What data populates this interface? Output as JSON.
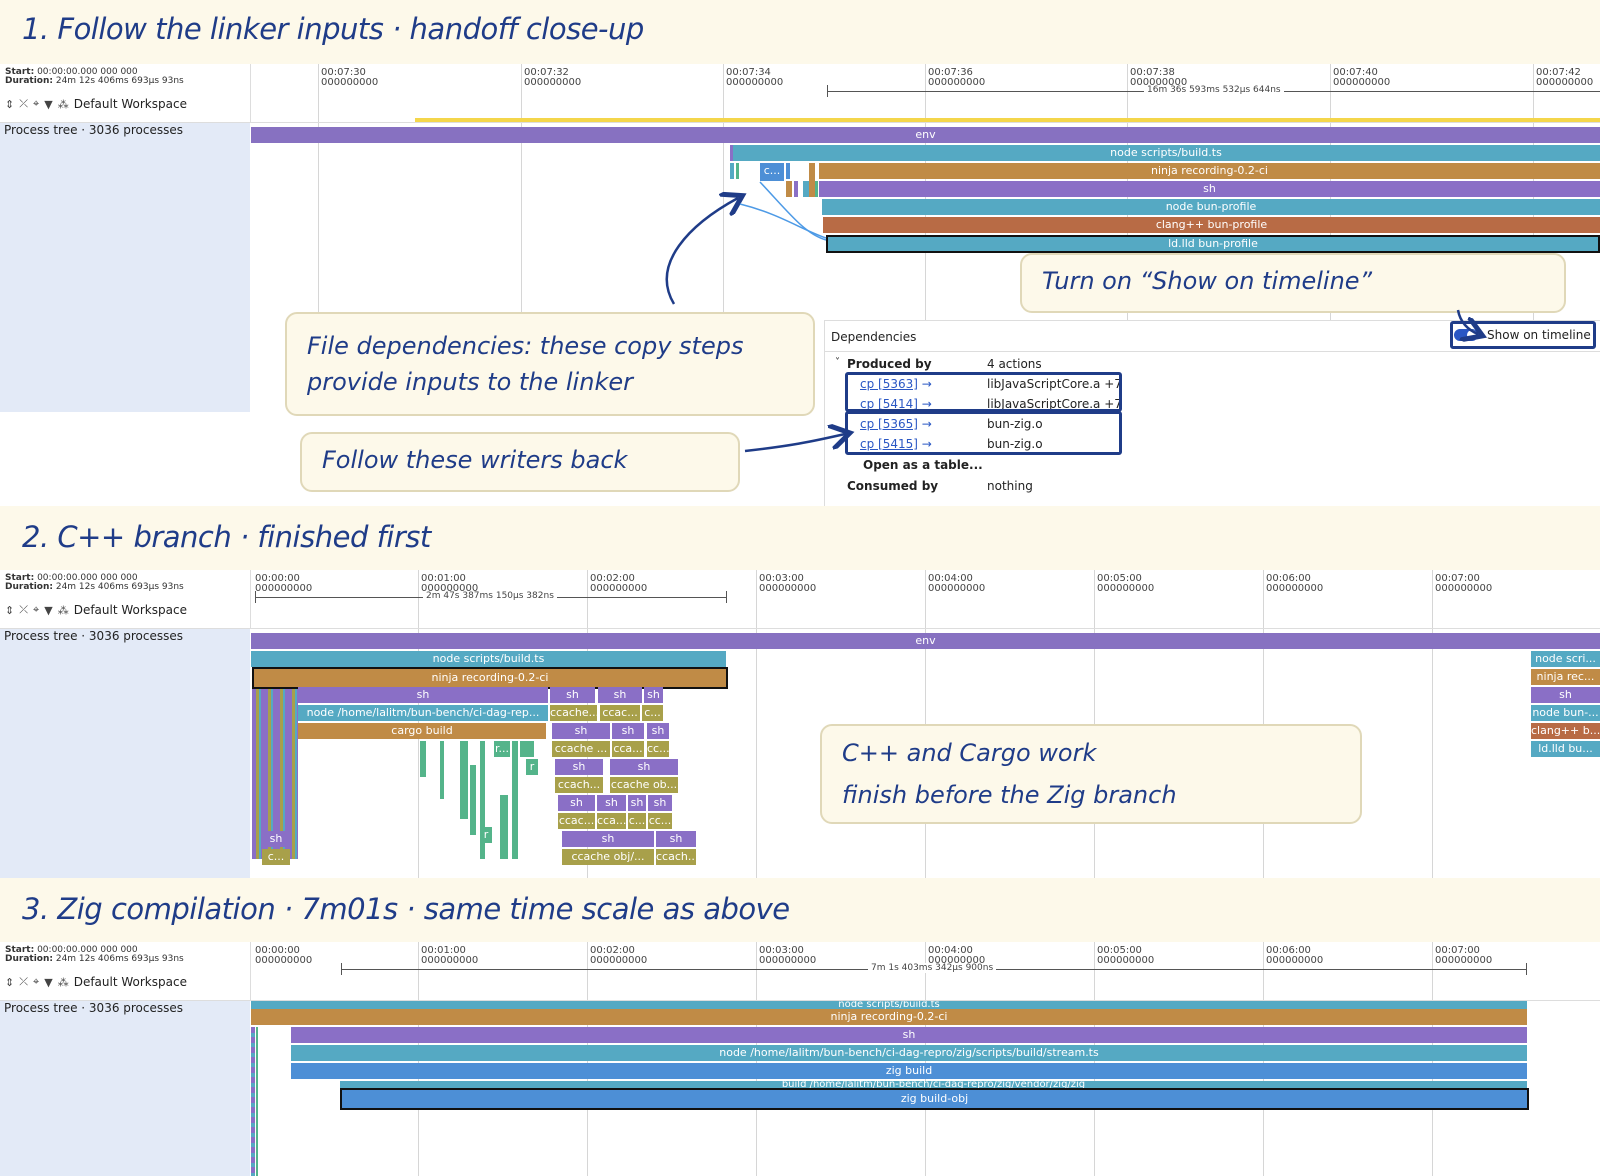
{
  "sections": [
    {
      "title": "1. Follow the linker inputs · handoff close-up"
    },
    {
      "title": "2. C++ branch · finished first"
    },
    {
      "title": "3. Zig compilation · 7m01s · same time scale as above"
    }
  ],
  "header": {
    "start_label": "Start:",
    "start_value": "00:00:00.000 000 000",
    "duration_label": "Duration:",
    "duration_value": "24m 12s 406ms 693μs 93ns",
    "workspace": "Default Workspace",
    "process_tree": "Process tree · 3036 processes"
  },
  "panel1": {
    "ticks": [
      "00:07:30",
      "00:07:32",
      "00:07:34",
      "00:07:36",
      "00:07:38",
      "00:07:40",
      "00:07:42"
    ],
    "tick_sub": "000000000",
    "range_label": "16m 36s 593ms 532μs 644ns",
    "bars": {
      "env": "env",
      "node": "node scripts/build.ts",
      "ninja": "ninja recording-0.2-ci",
      "sh": "sh",
      "nodebun": "node bun-profile",
      "clang": "clang++ bun-profile",
      "ld": "ld.lld bun-profile",
      "small": "c..."
    },
    "dependencies": {
      "title": "Dependencies",
      "toggle_label": "Show on timeline",
      "produced_by": "Produced by",
      "produced_count": "4 actions",
      "rows": [
        {
          "action": "cp [5363]",
          "file": "libJavaScriptCore.a +7"
        },
        {
          "action": "cp [5414]",
          "file": "libJavaScriptCore.a +7"
        },
        {
          "action": "cp [5365]",
          "file": "bun-zig.o"
        },
        {
          "action": "cp [5415]",
          "file": "bun-zig.o"
        }
      ],
      "arrow": "→",
      "open_table": "Open as a table...",
      "consumed_by": "Consumed by",
      "consumed_value": "nothing"
    },
    "callouts": {
      "toggle": "Turn on “Show on timeline”",
      "files_line1": "File dependencies: these copy steps",
      "files_line2": "provide inputs to the linker",
      "writers": "Follow these writers back"
    }
  },
  "panel2": {
    "ticks": [
      "00:00:00",
      "00:01:00",
      "00:02:00",
      "00:03:00",
      "00:04:00",
      "00:05:00",
      "00:06:00",
      "00:07:00"
    ],
    "tick_sub": "000000000",
    "range_label": "2m 47s 387ms 150μs 382ns",
    "bars": {
      "env": "env",
      "node": "node scripts/build.ts",
      "ninja": "ninja recording-0.2-ci",
      "sh": "sh",
      "nodehome": "node /home/lalitm/bun-bench/ci-dag-rep...",
      "cargo": "cargo build",
      "ccache1": "ccache...",
      "ccac": "ccac...",
      "c": "c...",
      "ccache2": "ccache ...",
      "cca": "cca...",
      "cc": "cc...",
      "ccach": "ccach...",
      "ccacheob": "ccache ob...",
      "cc2": "cc...",
      "ccacheobj": "ccache obj/...",
      "ccach2": "ccach...",
      "r": "r",
      "r2": "r...",
      "right_node": "node scri...",
      "right_ninja": "ninja rec...",
      "right_sh": "sh",
      "right_nodebun": "node bun-...",
      "right_clang": "clang++ b...",
      "right_ld": "ld.lld bu..."
    },
    "callout_line1": "C++ and Cargo work",
    "callout_line2": "finish before the Zig branch"
  },
  "panel3": {
    "ticks": [
      "00:00:00",
      "00:01:00",
      "00:02:00",
      "00:03:00",
      "00:04:00",
      "00:05:00",
      "00:06:00",
      "00:07:00"
    ],
    "tick_sub": "000000000",
    "range_label": "7m 1s 403ms 342μs 900ns",
    "bars": {
      "node": "node scripts/build.ts",
      "ninja": "ninja recording-0.2-ci",
      "sh": "sh",
      "nodestream": "node /home/lalitm/bun-bench/ci-dag-repro/zig/scripts/build/stream.ts",
      "zigbuild": "zig build",
      "buildvendor": "build /home/lalitm/bun-bench/ci-dag-repro/zig/vendor/zig/zig",
      "zigobj": "zig build-obj"
    }
  },
  "colors": {
    "title_blue": "#1f3c88",
    "env": "#8771c1",
    "teal": "#55a9c3",
    "brown": "#c08b46",
    "blue": "#4d8fd6",
    "green": "#54b48a",
    "band": "#fdf9ea"
  }
}
